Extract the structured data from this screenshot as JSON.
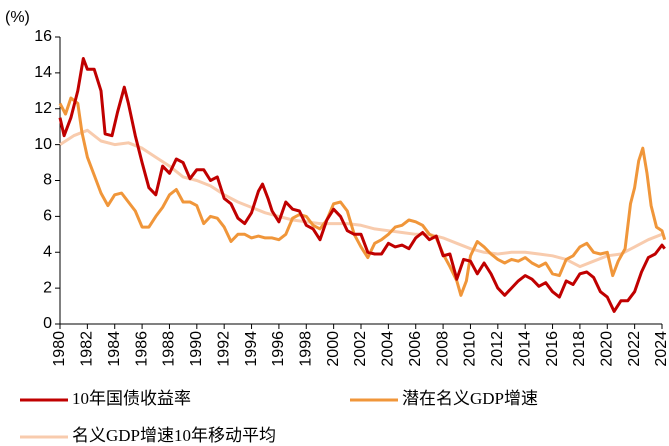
{
  "chart_data": {
    "type": "line",
    "y_label": "(%)",
    "xlim": [
      1980,
      2024
    ],
    "xticks": [
      1980,
      1982,
      1984,
      1986,
      1988,
      1990,
      1992,
      1994,
      1996,
      1998,
      2000,
      2002,
      2004,
      2006,
      2008,
      2010,
      2012,
      2014,
      2016,
      2018,
      2020,
      2022,
      2024
    ],
    "ylim": [
      0,
      16
    ],
    "yticks": [
      0,
      2,
      4,
      6,
      8,
      10,
      12,
      14,
      16
    ],
    "grid": false,
    "legend": "bottom",
    "series": [
      {
        "name": "10年国债收益率",
        "color": "#c00000",
        "x": [
          1980,
          1980.3,
          1980.8,
          1981.3,
          1981.7,
          1982,
          1982.5,
          1983,
          1983.3,
          1983.8,
          1984.2,
          1984.7,
          1985,
          1985.5,
          1986,
          1986.5,
          1987,
          1987.5,
          1988,
          1988.5,
          1989,
          1989.5,
          1990,
          1990.5,
          1991,
          1991.5,
          1992,
          1992.5,
          1993,
          1993.5,
          1994,
          1994.5,
          1994.8,
          1995.2,
          1995.5,
          1996,
          1996.5,
          1997,
          1997.5,
          1998,
          1998.5,
          1999,
          1999.5,
          2000,
          2000.5,
          2001,
          2001.5,
          2002,
          2002.5,
          2003,
          2003.5,
          2004,
          2004.5,
          2005,
          2005.5,
          2006,
          2006.5,
          2007,
          2007.5,
          2008,
          2008.5,
          2009,
          2009.5,
          2010,
          2010.5,
          2011,
          2011.5,
          2012,
          2012.5,
          2013,
          2013.5,
          2014,
          2014.5,
          2015,
          2015.5,
          2016,
          2016.5,
          2017,
          2017.5,
          2018,
          2018.5,
          2019,
          2019.5,
          2020,
          2020.5,
          2021,
          2021.5,
          2022,
          2022.5,
          2023,
          2023.5,
          2024,
          2024.2
        ],
        "values": [
          11.5,
          10.5,
          11.5,
          13,
          14.8,
          14.2,
          14.2,
          13.0,
          10.6,
          10.5,
          11.8,
          13.2,
          12.3,
          10.5,
          9.0,
          7.6,
          7.2,
          8.8,
          8.4,
          9.2,
          9.0,
          8.1,
          8.6,
          8.6,
          8.0,
          8.2,
          7.0,
          6.7,
          5.9,
          5.6,
          6.2,
          7.4,
          7.8,
          7.0,
          6.3,
          5.7,
          6.8,
          6.4,
          6.3,
          5.5,
          5.3,
          4.7,
          5.8,
          6.4,
          6.0,
          5.2,
          5.0,
          5.0,
          4.0,
          3.9,
          3.9,
          4.5,
          4.3,
          4.4,
          4.2,
          4.8,
          5.1,
          4.7,
          4.9,
          3.8,
          3.9,
          2.5,
          3.6,
          3.5,
          2.8,
          3.4,
          2.8,
          2.0,
          1.6,
          2.0,
          2.4,
          2.7,
          2.5,
          2.1,
          2.3,
          1.8,
          1.5,
          2.4,
          2.2,
          2.8,
          2.9,
          2.6,
          1.8,
          1.5,
          0.7,
          1.3,
          1.3,
          1.8,
          2.9,
          3.7,
          3.9,
          4.4,
          4.2
        ]
      },
      {
        "name": "潜在名义GDP增速",
        "color": "#f0963a",
        "x": [
          1980,
          1980.4,
          1980.8,
          1981.3,
          1981.6,
          1982,
          1982.5,
          1983,
          1983.5,
          1984,
          1984.5,
          1985,
          1985.5,
          1986,
          1986.5,
          1987,
          1987.5,
          1988,
          1988.5,
          1989,
          1989.5,
          1990,
          1990.5,
          1991,
          1991.5,
          1992,
          1992.5,
          1993,
          1993.5,
          1994,
          1994.5,
          1995,
          1995.5,
          1996,
          1996.5,
          1997,
          1997.5,
          1998,
          1998.5,
          1999,
          1999.5,
          2000,
          2000.5,
          2001,
          2001.5,
          2002,
          2002.5,
          2003,
          2003.5,
          2004,
          2004.5,
          2005,
          2005.5,
          2006,
          2006.5,
          2007,
          2007.5,
          2008,
          2008.5,
          2009,
          2009.3,
          2009.7,
          2010,
          2010.5,
          2011,
          2011.5,
          2012,
          2012.5,
          2013,
          2013.5,
          2014,
          2014.5,
          2015,
          2015.5,
          2016,
          2016.5,
          2017,
          2017.5,
          2018,
          2018.5,
          2019,
          2019.5,
          2020,
          2020.4,
          2020.8,
          2021.3,
          2021.7,
          2022,
          2022.3,
          2022.6,
          2022.9,
          2023.2,
          2023.6,
          2024,
          2024.2
        ],
        "values": [
          12.3,
          11.7,
          12.6,
          12.3,
          10.7,
          9.3,
          8.3,
          7.3,
          6.6,
          7.2,
          7.3,
          6.8,
          6.3,
          5.4,
          5.4,
          6.0,
          6.5,
          7.2,
          7.5,
          6.8,
          6.8,
          6.6,
          5.6,
          6.0,
          5.9,
          5.4,
          4.6,
          5.0,
          5.0,
          4.8,
          4.9,
          4.8,
          4.8,
          4.7,
          5.0,
          5.9,
          6.1,
          6.0,
          5.5,
          5.3,
          5.8,
          6.7,
          6.8,
          6.3,
          5.0,
          4.3,
          3.7,
          4.5,
          4.7,
          5.0,
          5.4,
          5.5,
          5.8,
          5.7,
          5.5,
          5.0,
          4.8,
          3.9,
          3.2,
          2.4,
          1.6,
          2.4,
          3.8,
          4.6,
          4.3,
          3.9,
          3.6,
          3.4,
          3.6,
          3.5,
          3.7,
          3.4,
          3.2,
          3.4,
          2.8,
          2.7,
          3.6,
          3.8,
          4.3,
          4.5,
          4.0,
          3.9,
          4.0,
          2.7,
          3.5,
          4.2,
          6.7,
          7.6,
          9.1,
          9.8,
          8.4,
          6.6,
          5.4,
          5.2,
          4.7
        ]
      },
      {
        "name": "名义GDP增速10年移动平均",
        "color": "#f8cbad",
        "x": [
          1980,
          1981,
          1982,
          1983,
          1984,
          1985,
          1986,
          1987,
          1988,
          1989,
          1990,
          1991,
          1992,
          1993,
          1994,
          1995,
          1996,
          1997,
          1998,
          1999,
          2000,
          2001,
          2002,
          2003,
          2004,
          2005,
          2006,
          2007,
          2008,
          2009,
          2010,
          2011,
          2012,
          2013,
          2014,
          2015,
          2016,
          2017,
          2018,
          2019,
          2020,
          2021,
          2022,
          2023,
          2024
        ],
        "values": [
          10.0,
          10.5,
          10.8,
          10.2,
          10.0,
          10.1,
          9.8,
          9.3,
          8.8,
          8.2,
          8.0,
          7.7,
          7.2,
          6.8,
          6.5,
          6.2,
          6.0,
          5.8,
          5.7,
          5.6,
          5.6,
          5.6,
          5.5,
          5.3,
          5.2,
          5.1,
          5.0,
          5.0,
          4.8,
          4.5,
          4.2,
          4.0,
          3.9,
          4.0,
          4.0,
          3.9,
          3.8,
          3.6,
          3.2,
          3.5,
          3.8,
          3.9,
          4.3,
          4.7,
          5.0
        ]
      }
    ]
  }
}
